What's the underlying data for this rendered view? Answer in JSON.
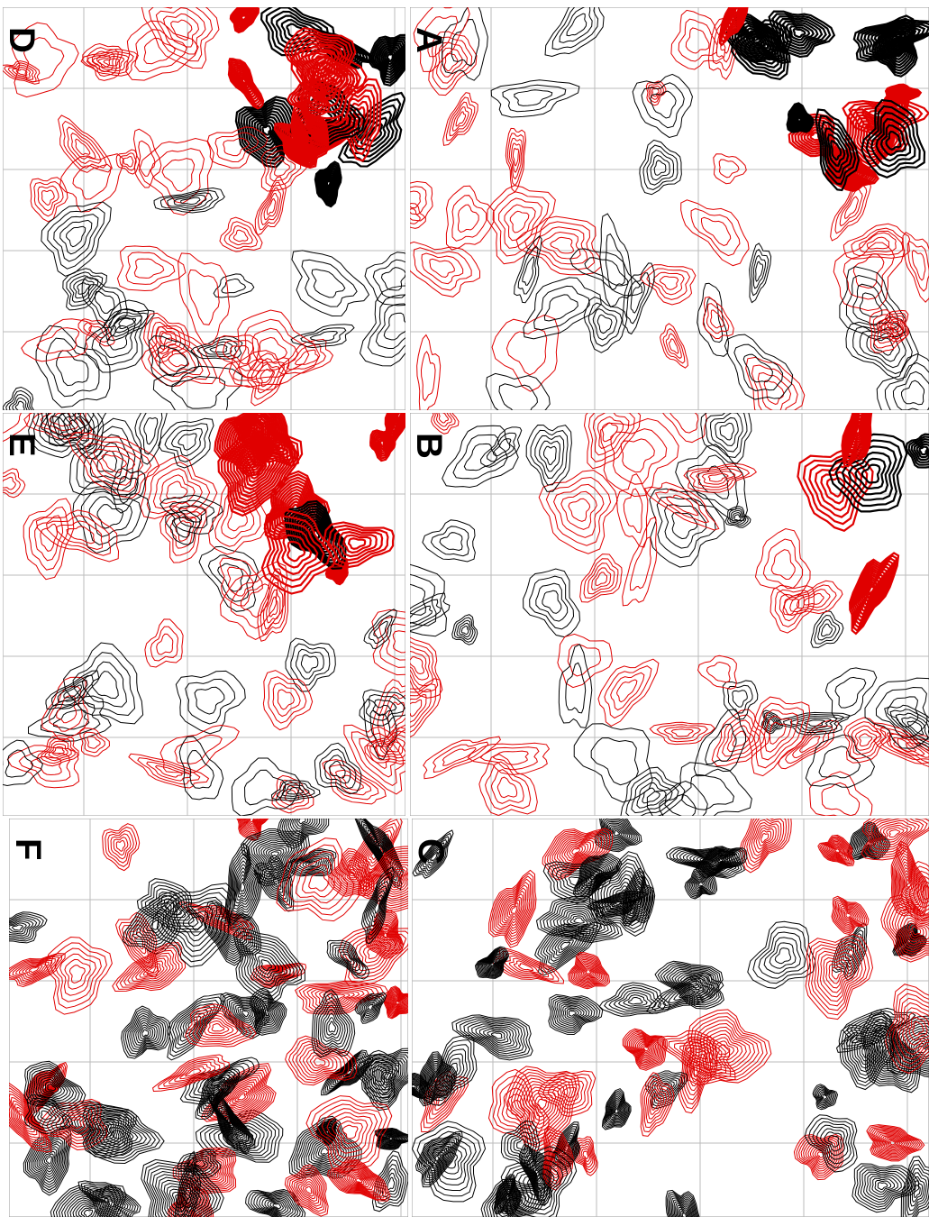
{
  "panels": [
    {
      "label": "D"
    },
    {
      "label": "A"
    },
    {
      "label": "E"
    },
    {
      "label": "B"
    },
    {
      "label": "F"
    },
    {
      "label": "C"
    }
  ]
}
